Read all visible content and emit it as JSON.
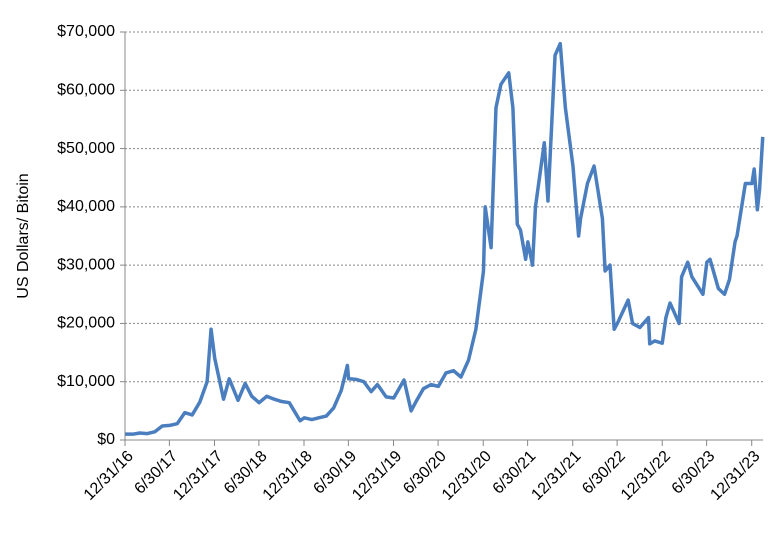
{
  "chart_data": {
    "type": "line",
    "y_label": "US Dollars/ Bitoin",
    "x": [
      "1/1/17",
      "2/1/17",
      "3/1/17",
      "4/1/17",
      "5/1/17",
      "6/1/17",
      "7/1/17",
      "8/1/17",
      "9/1/17",
      "10/1/17",
      "11/1/17",
      "12/1/17",
      "12/17/17",
      "1/1/18",
      "2/6/18",
      "3/1/18",
      "4/6/18",
      "5/5/18",
      "6/1/18",
      "7/1/18",
      "8/1/18",
      "9/1/18",
      "10/1/18",
      "11/1/18",
      "12/15/18",
      "1/1/19",
      "2/1/19",
      "3/1/19",
      "4/1/19",
      "5/1/19",
      "6/1/19",
      "6/26/19",
      "7/1/19",
      "8/1/19",
      "9/1/19",
      "10/1/19",
      "10/26/19",
      "11/1/19",
      "12/1/19",
      "1/1/20",
      "2/12/20",
      "3/12/20",
      "4/1/20",
      "5/1/20",
      "6/1/20",
      "7/1/20",
      "8/1/20",
      "9/1/20",
      "10/1/20",
      "11/1/20",
      "12/1/20",
      "1/1/21",
      "1/8/21",
      "2/1/21",
      "2/21/21",
      "3/13/21",
      "4/14/21",
      "5/1/21",
      "5/19/21",
      "6/1/21",
      "6/22/21",
      "7/1/21",
      "7/20/21",
      "8/1/21",
      "9/6/21",
      "9/21/21",
      "10/20/21",
      "11/10/21",
      "12/1/21",
      "1/1/22",
      "1/24/22",
      "2/1/22",
      "3/1/22",
      "3/28/22",
      "4/1/22",
      "5/1/22",
      "5/12/22",
      "6/1/22",
      "6/18/22",
      "7/1/22",
      "8/14/22",
      "9/1/22",
      "10/1/22",
      "11/5/22",
      "11/10/22",
      "12/1/22",
      "12/31/22",
      "1/15/23",
      "2/1/23",
      "3/10/23",
      "3/20/23",
      "4/14/23",
      "5/1/23",
      "6/15/23",
      "7/1/23",
      "7/14/23",
      "8/17/23",
      "9/11/23",
      "10/1/23",
      "10/24/23",
      "11/1/23",
      "12/5/23",
      "1/1/24",
      "1/10/24",
      "1/23/24",
      "2/1/24",
      "2/14/24"
    ],
    "series": [
      {
        "name": "Bitcoin",
        "color": "#4a7ebf",
        "values": [
          1000,
          1000,
          1200,
          1100,
          1400,
          2400,
          2500,
          2800,
          4700,
          4300,
          6500,
          10000,
          19000,
          14000,
          7000,
          10500,
          6800,
          9700,
          7500,
          6400,
          7500,
          7000,
          6600,
          6400,
          3300,
          3800,
          3500,
          3800,
          4100,
          5500,
          8500,
          12800,
          10500,
          10400,
          10000,
          8300,
          9500,
          9200,
          7400,
          7200,
          10300,
          5000,
          6600,
          8800,
          9500,
          9200,
          11500,
          11900,
          10800,
          13700,
          19000,
          29000,
          40000,
          33000,
          57000,
          61000,
          63000,
          57000,
          37000,
          36000,
          31000,
          34000,
          30000,
          40000,
          51000,
          41000,
          66000,
          68000,
          57000,
          47000,
          35000,
          38000,
          44000,
          47000,
          46000,
          38000,
          29000,
          30000,
          19000,
          20000,
          24000,
          20000,
          19300,
          21000,
          16500,
          17000,
          16600,
          21000,
          23500,
          20000,
          28000,
          30500,
          28000,
          25000,
          30500,
          31000,
          26000,
          25000,
          27500,
          34000,
          35000,
          44000,
          44000,
          46500,
          39500,
          43000,
          52000
        ]
      }
    ],
    "xlim": [
      "12/31/16",
      "2/15/24"
    ],
    "xticks": [
      "12/31/16",
      "6/30/17",
      "12/31/17",
      "6/30/18",
      "12/31/18",
      "6/30/19",
      "12/31/19",
      "6/30/20",
      "12/31/20",
      "6/30/21",
      "12/31/21",
      "6/30/22",
      "12/31/22",
      "6/30/23",
      "12/31/23"
    ],
    "ylim": [
      0,
      70000
    ],
    "yticks": [
      {
        "value": 0,
        "label": "$0"
      },
      {
        "value": 10000,
        "label": "$10,000"
      },
      {
        "value": 20000,
        "label": "$20,000"
      },
      {
        "value": 30000,
        "label": "$30,000"
      },
      {
        "value": 40000,
        "label": "$40,000"
      },
      {
        "value": 50000,
        "label": "$50,000"
      },
      {
        "value": 60000,
        "label": "$60,000"
      },
      {
        "value": 70000,
        "label": "$70,000"
      }
    ],
    "grid": true
  }
}
